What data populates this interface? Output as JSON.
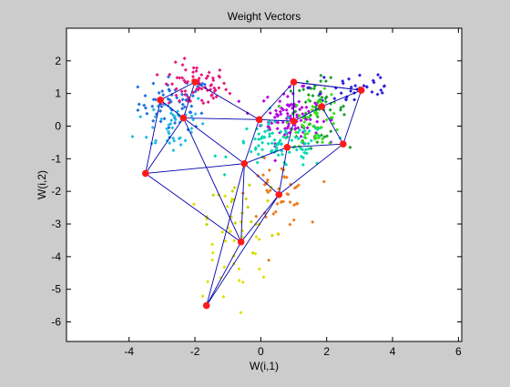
{
  "figure": {
    "background": "#cccccc",
    "axes_background": "#ffffff"
  },
  "chart_data": {
    "type": "scatter",
    "title": "Weight Vectors",
    "xlabel": "W(i,1)",
    "ylabel": "W(i,2)",
    "xlim": [
      -5.9,
      6.1
    ],
    "ylim": [
      -6.6,
      3.0
    ],
    "xticks": [
      -4,
      -2,
      0,
      2,
      4,
      6
    ],
    "yticks": [
      2,
      1,
      0,
      -1,
      -2,
      -3,
      -4,
      -5,
      -6
    ],
    "grid": false,
    "legend": "none",
    "series": [
      {
        "color": "#1d6fe0",
        "marker": "dot",
        "center": [
          -2.6,
          0.7
        ],
        "spread": [
          0.55,
          0.4
        ],
        "count": 60
      },
      {
        "color": "#e6157a",
        "marker": "dot",
        "center": [
          -2.0,
          1.2
        ],
        "spread": [
          0.5,
          0.35
        ],
        "count": 70
      },
      {
        "color": "#22b8e8",
        "marker": "dot",
        "center": [
          -2.7,
          0.1
        ],
        "spread": [
          0.55,
          0.5
        ],
        "count": 45
      },
      {
        "color": "#b400e0",
        "marker": "dot",
        "center": [
          0.9,
          0.3
        ],
        "spread": [
          0.45,
          0.4
        ],
        "count": 100
      },
      {
        "color": "#1a9e2e",
        "marker": "dot",
        "center": [
          1.7,
          0.5
        ],
        "spread": [
          0.45,
          0.45
        ],
        "count": 55
      },
      {
        "color": "#2a20d8",
        "marker": "dot",
        "center": [
          2.9,
          1.2
        ],
        "spread": [
          0.7,
          0.35
        ],
        "count": 35
      },
      {
        "color": "#00d8b0",
        "marker": "dot",
        "center": [
          0.6,
          -0.6
        ],
        "spread": [
          0.75,
          0.35
        ],
        "count": 90
      },
      {
        "color": "#36e015",
        "marker": "dot",
        "center": [
          1.7,
          0.2
        ],
        "spread": [
          0.4,
          0.4
        ],
        "count": 50
      },
      {
        "color": "#f07a1a",
        "marker": "dot",
        "center": [
          0.5,
          -2.1
        ],
        "spread": [
          0.45,
          0.5
        ],
        "count": 45
      },
      {
        "color": "#e0e000",
        "marker": "dot",
        "center": [
          -1.0,
          -3.7
        ],
        "spread": [
          0.65,
          0.9
        ],
        "count": 35
      },
      {
        "color": "#c8d400",
        "marker": "dot",
        "center": [
          -0.6,
          -2.8
        ],
        "spread": [
          0.5,
          0.6
        ],
        "count": 20
      }
    ],
    "nodes": {
      "color": "#ff1a1a",
      "x": [
        -3.05,
        -2.0,
        -2.35,
        -0.05,
        1.0,
        1.0,
        1.85,
        3.05,
        -3.5,
        -0.5,
        0.8,
        2.5,
        0.55,
        -0.6,
        -1.65
      ],
      "y": [
        0.8,
        1.35,
        0.25,
        0.2,
        1.35,
        0.15,
        0.6,
        1.1,
        -1.45,
        -1.15,
        -0.65,
        -0.55,
        -2.1,
        -3.55,
        -5.5
      ]
    },
    "links": {
      "color": "#0000aa",
      "pairs": [
        [
          0,
          1
        ],
        [
          0,
          2
        ],
        [
          0,
          8
        ],
        [
          1,
          3
        ],
        [
          1,
          2
        ],
        [
          2,
          3
        ],
        [
          2,
          8
        ],
        [
          2,
          9
        ],
        [
          2,
          13
        ],
        [
          3,
          4
        ],
        [
          3,
          5
        ],
        [
          3,
          9
        ],
        [
          4,
          5
        ],
        [
          4,
          7
        ],
        [
          5,
          6
        ],
        [
          5,
          10
        ],
        [
          6,
          7
        ],
        [
          6,
          11
        ],
        [
          7,
          11
        ],
        [
          7,
          4
        ],
        [
          8,
          9
        ],
        [
          8,
          13
        ],
        [
          9,
          10
        ],
        [
          9,
          12
        ],
        [
          9,
          14
        ],
        [
          10,
          11
        ],
        [
          10,
          12
        ],
        [
          11,
          12
        ],
        [
          12,
          13
        ],
        [
          12,
          14
        ],
        [
          13,
          14
        ],
        [
          9,
          13
        ]
      ]
    }
  }
}
